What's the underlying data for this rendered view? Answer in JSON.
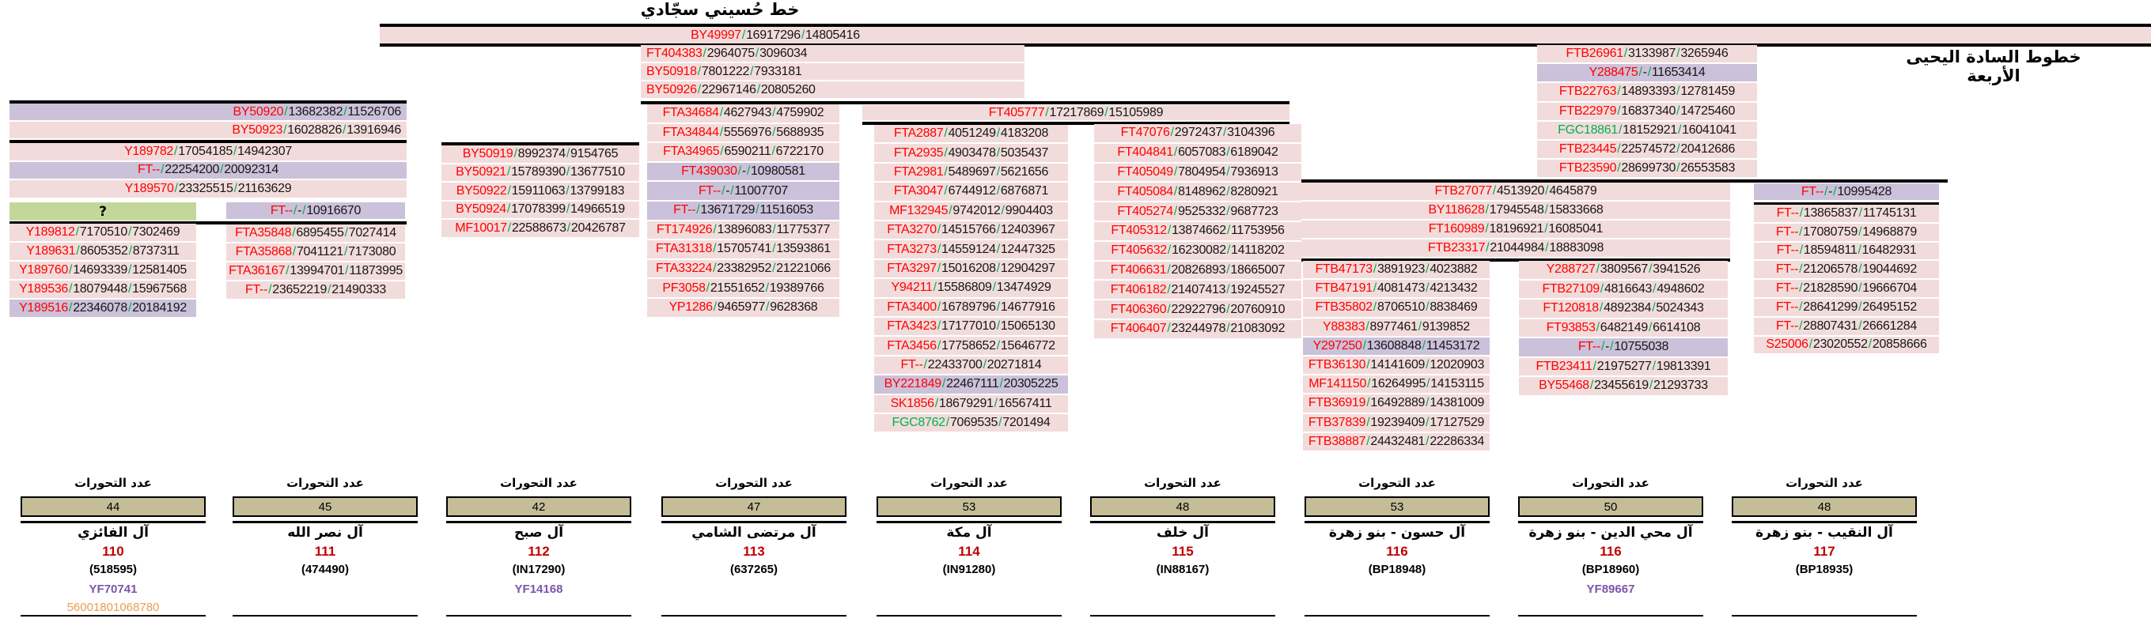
{
  "page": {
    "root_title": "خط حُسيني سجّادي",
    "right_title": "خطوط السادة اليحيى الأربعة",
    "mutations_label": "عدد التحورات",
    "unknown_branch_label": "?"
  },
  "colors": {
    "pink": "#f2dcdb",
    "purple": "#ccc1da",
    "green_cell": "#c4d79b",
    "tan": "#c4bd97",
    "snp_name": "#ff0000",
    "snp_green": "#00b050",
    "slash": "#00b050",
    "family_number": "#c00000",
    "yf_id": "#7a56a8",
    "extra_id": "#ed9c4e"
  },
  "root_snp": {
    "n": "BY49997",
    "a": "16917296",
    "b": "14805416"
  },
  "snp_groups": [
    {
      "id": "groupA",
      "rows": [
        {
          "n": "FT404383",
          "a": "2964075",
          "b": "3096034"
        },
        {
          "n": "BY50918",
          "a": "7801222",
          "b": "7933181"
        },
        {
          "n": "BY50926",
          "a": "22967146",
          "b": "20805260"
        }
      ]
    },
    {
      "id": "rightTop",
      "rows": [
        {
          "n": "FTB26961",
          "a": "3133987",
          "b": "3265946"
        },
        {
          "n": "Y288475",
          "a": "-",
          "b": "11653414",
          "p": 1
        },
        {
          "n": "FTB22763",
          "a": "14893393",
          "b": "12781459"
        },
        {
          "n": "FTB22979",
          "a": "16837340",
          "b": "14725460"
        },
        {
          "n": "FGC18861",
          "a": "18152921",
          "b": "16041041",
          "g": 1
        },
        {
          "n": "FTB23445",
          "a": "22574572",
          "b": "20412686"
        },
        {
          "n": "FTB23590",
          "a": "28699730",
          "b": "26553583"
        }
      ]
    },
    {
      "id": "gB1",
      "rows": [
        {
          "n": "BY50920",
          "a": "13682382",
          "b": "11526706",
          "p": 1
        },
        {
          "n": "BY50923",
          "a": "16028826",
          "b": "13916946"
        }
      ]
    },
    {
      "id": "gB2",
      "rows": [
        {
          "n": "Y189782",
          "a": "17054185",
          "b": "14942307"
        },
        {
          "n": "FT--",
          "a": "22254200",
          "b": "20092314",
          "p": 1
        },
        {
          "n": "Y189570",
          "a": "23325515",
          "b": "21163629"
        }
      ]
    },
    {
      "id": "g2head",
      "rows": [
        {
          "n": "FT--",
          "a": "-",
          "b": "10916670",
          "p": 1
        }
      ]
    },
    {
      "id": "g1",
      "rows": [
        {
          "n": "Y189812",
          "a": "7170510",
          "b": "7302469"
        },
        {
          "n": "Y189631",
          "a": "8605352",
          "b": "8737311"
        },
        {
          "n": "Y189760",
          "a": "14693339",
          "b": "12581405"
        },
        {
          "n": "Y189536",
          "a": "18079448",
          "b": "15967568"
        },
        {
          "n": "Y189516",
          "a": "22346078",
          "b": "20184192",
          "p": 1
        }
      ]
    },
    {
      "id": "g2",
      "rows": [
        {
          "n": "FTA35848",
          "a": "6895455",
          "b": "7027414"
        },
        {
          "n": "FTA35868",
          "a": "7041121",
          "b": "7173080"
        },
        {
          "n": "FTA36167",
          "a": "13994701",
          "b": "11873995"
        },
        {
          "n": "FT--",
          "a": "23652219",
          "b": "21490333"
        }
      ]
    },
    {
      "id": "g3",
      "rows": [
        {
          "n": "BY50919",
          "a": "8992374",
          "b": "9154765"
        },
        {
          "n": "BY50921",
          "a": "15789390",
          "b": "13677510"
        },
        {
          "n": "BY50922",
          "a": "15911063",
          "b": "13799183"
        },
        {
          "n": "BY50924",
          "a": "17078399",
          "b": "14966519"
        },
        {
          "n": "MF10017",
          "a": "22588673",
          "b": "20426787"
        }
      ]
    },
    {
      "id": "g4",
      "rows": [
        {
          "n": "FTA34684",
          "a": "4627943",
          "b": "4759902"
        },
        {
          "n": "FTA34844",
          "a": "5556976",
          "b": "5688935"
        },
        {
          "n": "FTA34965",
          "a": "6590211",
          "b": "6722170"
        },
        {
          "n": "FT439030",
          "a": "-",
          "b": "10980581",
          "p": 1
        },
        {
          "n": "FT--",
          "a": "-",
          "b": "11007707",
          "p": 1
        },
        {
          "n": "FT--",
          "a": "13671729",
          "b": "11516053",
          "p": 1
        },
        {
          "n": "FT174926",
          "a": "13896083",
          "b": "11775377"
        },
        {
          "n": "FTA31318",
          "a": "15705741",
          "b": "13593861"
        },
        {
          "n": "FTA33224",
          "a": "23382952",
          "b": "21221066"
        },
        {
          "n": "PF3058",
          "a": "21551652",
          "b": "19389766"
        },
        {
          "n": "YP1286",
          "a": "9465977",
          "b": "9628368"
        }
      ]
    },
    {
      "id": "g56head",
      "rows": [
        {
          "n": "FT405777",
          "a": "17217869",
          "b": "15105989"
        }
      ]
    },
    {
      "id": "g5",
      "rows": [
        {
          "n": "FTA2887",
          "a": "4051249",
          "b": "4183208"
        },
        {
          "n": "FTA2935",
          "a": "4903478",
          "b": "5035437"
        },
        {
          "n": "FTA2981",
          "a": "5489697",
          "b": "5621656"
        },
        {
          "n": "FTA3047",
          "a": "6744912",
          "b": "6876871"
        },
        {
          "n": "MF132945",
          "a": "9742012",
          "b": "9904403"
        },
        {
          "n": "FTA3270",
          "a": "14515766",
          "b": "12403967"
        },
        {
          "n": "FTA3273",
          "a": "14559124",
          "b": "12447325"
        },
        {
          "n": "FTA3297",
          "a": "15016208",
          "b": "12904297"
        },
        {
          "n": "Y94211",
          "a": "15586809",
          "b": "13474929"
        },
        {
          "n": "FTA3400",
          "a": "16789796",
          "b": "14677916"
        },
        {
          "n": "FTA3423",
          "a": "17177010",
          "b": "15065130"
        },
        {
          "n": "FTA3456",
          "a": "17758652",
          "b": "15646772"
        },
        {
          "n": "FT--",
          "a": "22433700",
          "b": "20271814"
        },
        {
          "n": "BY221849",
          "a": "22467111",
          "b": "20305225",
          "p": 1
        },
        {
          "n": "SK1856",
          "a": "18679291",
          "b": "16567411"
        },
        {
          "n": "FGC8762",
          "a": "7069535",
          "b": "7201494",
          "g": 1
        }
      ]
    },
    {
      "id": "g6",
      "rows": [
        {
          "n": "FT47076",
          "a": "2972437",
          "b": "3104396"
        },
        {
          "n": "FT404841",
          "a": "6057083",
          "b": "6189042"
        },
        {
          "n": "FT405049",
          "a": "7804954",
          "b": "7936913"
        },
        {
          "n": "FT405084",
          "a": "8148962",
          "b": "8280921"
        },
        {
          "n": "FT405274",
          "a": "9525332",
          "b": "9687723"
        },
        {
          "n": "FT405312",
          "a": "13874662",
          "b": "11753956"
        },
        {
          "n": "FT405632",
          "a": "16230082",
          "b": "14118202"
        },
        {
          "n": "FT406631",
          "a": "20826893",
          "b": "18665007"
        },
        {
          "n": "FT406182",
          "a": "21407413",
          "b": "19245527"
        },
        {
          "n": "FT406360",
          "a": "22922796",
          "b": "20760910"
        },
        {
          "n": "FT406407",
          "a": "23244978",
          "b": "21083092"
        }
      ]
    },
    {
      "id": "g7head",
      "rows": [
        {
          "n": "FTB27077",
          "a": "4513920",
          "b": "4645879"
        },
        {
          "n": "BY118628",
          "a": "17945548",
          "b": "15833668"
        },
        {
          "n": "FT160989",
          "a": "18196921",
          "b": "16085041"
        },
        {
          "n": "FTB23317",
          "a": "21044984",
          "b": "18883098"
        }
      ]
    },
    {
      "id": "g9head",
      "rows": [
        {
          "n": "FT--",
          "a": "-",
          "b": "10995428",
          "p": 1
        }
      ]
    },
    {
      "id": "g7",
      "rows": [
        {
          "n": "FTB47173",
          "a": "3891923",
          "b": "4023882"
        },
        {
          "n": "FTB47191",
          "a": "4081473",
          "b": "4213432"
        },
        {
          "n": "FTB35802",
          "a": "8706510",
          "b": "8838469"
        },
        {
          "n": "Y88383",
          "a": "8977461",
          "b": "9139852"
        },
        {
          "n": "Y297250",
          "a": "13608848",
          "b": "11453172",
          "p": 1
        },
        {
          "n": "FTB36130",
          "a": "14141609",
          "b": "12020903"
        },
        {
          "n": "MF141150",
          "a": "16264995",
          "b": "14153115"
        },
        {
          "n": "FTB36919",
          "a": "16492889",
          "b": "14381009"
        },
        {
          "n": "FTB37839",
          "a": "19239409",
          "b": "17127529"
        },
        {
          "n": "FTB38887",
          "a": "24432481",
          "b": "22286334"
        }
      ]
    },
    {
      "id": "g8",
      "rows": [
        {
          "n": "Y288727",
          "a": "3809567",
          "b": "3941526"
        },
        {
          "n": "FTB27109",
          "a": "4816643",
          "b": "4948602"
        },
        {
          "n": "FT120818",
          "a": "4892384",
          "b": "5024343"
        },
        {
          "n": "FT93853",
          "a": "6482149",
          "b": "6614108"
        },
        {
          "n": "FT--",
          "a": "-",
          "b": "10755038",
          "p": 1
        },
        {
          "n": "FTB23411",
          "a": "21975277",
          "b": "19813391"
        },
        {
          "n": "BY55468",
          "a": "23455619",
          "b": "21293733"
        }
      ]
    },
    {
      "id": "g9",
      "rows": [
        {
          "n": "FT--",
          "a": "13865837",
          "b": "11745131"
        },
        {
          "n": "FT--",
          "a": "17080759",
          "b": "14968879"
        },
        {
          "n": "FT--",
          "a": "18594811",
          "b": "16482931"
        },
        {
          "n": "FT--",
          "a": "21206578",
          "b": "19044692"
        },
        {
          "n": "FT--",
          "a": "21828590",
          "b": "19666704"
        },
        {
          "n": "FT--",
          "a": "28641299",
          "b": "26495152"
        },
        {
          "n": "FT--",
          "a": "28807431",
          "b": "26661284"
        },
        {
          "n": "S25006",
          "a": "23020552",
          "b": "20858666"
        }
      ]
    }
  ],
  "bottom_columns": [
    {
      "mutations": "44",
      "family": "آل الفائزي",
      "number": "110",
      "kit": "(518595)",
      "yf": "YF70741",
      "extra": "56001801068780"
    },
    {
      "mutations": "45",
      "family": "آل نصر الله",
      "number": "111",
      "kit": "(474490)",
      "yf": "",
      "extra": ""
    },
    {
      "mutations": "42",
      "family": "آل صبح",
      "number": "112",
      "kit": "(IN17290)",
      "yf": "YF14168",
      "extra": ""
    },
    {
      "mutations": "47",
      "family": "آل مرتضى الشامي",
      "number": "113",
      "kit": "(637265)",
      "yf": "",
      "extra": ""
    },
    {
      "mutations": "53",
      "family": "آل مكة",
      "number": "114",
      "kit": "(IN91280)",
      "yf": "",
      "extra": ""
    },
    {
      "mutations": "48",
      "family": "آل خلف",
      "number": "115",
      "kit": "(IN88167)",
      "yf": "",
      "extra": ""
    },
    {
      "mutations": "53",
      "family": "آل حسون - بنو زهرة",
      "number": "116",
      "kit": "(BP18948)",
      "yf": "",
      "extra": ""
    },
    {
      "mutations": "50",
      "family": "آل محي الدين - بنو زهرة",
      "number": "116",
      "kit": "(BP18960)",
      "yf": "YF89667",
      "extra": ""
    },
    {
      "mutations": "48",
      "family": "آل النقيب - بنو زهرة",
      "number": "117",
      "kit": "(BP18935)",
      "yf": "",
      "extra": ""
    }
  ]
}
